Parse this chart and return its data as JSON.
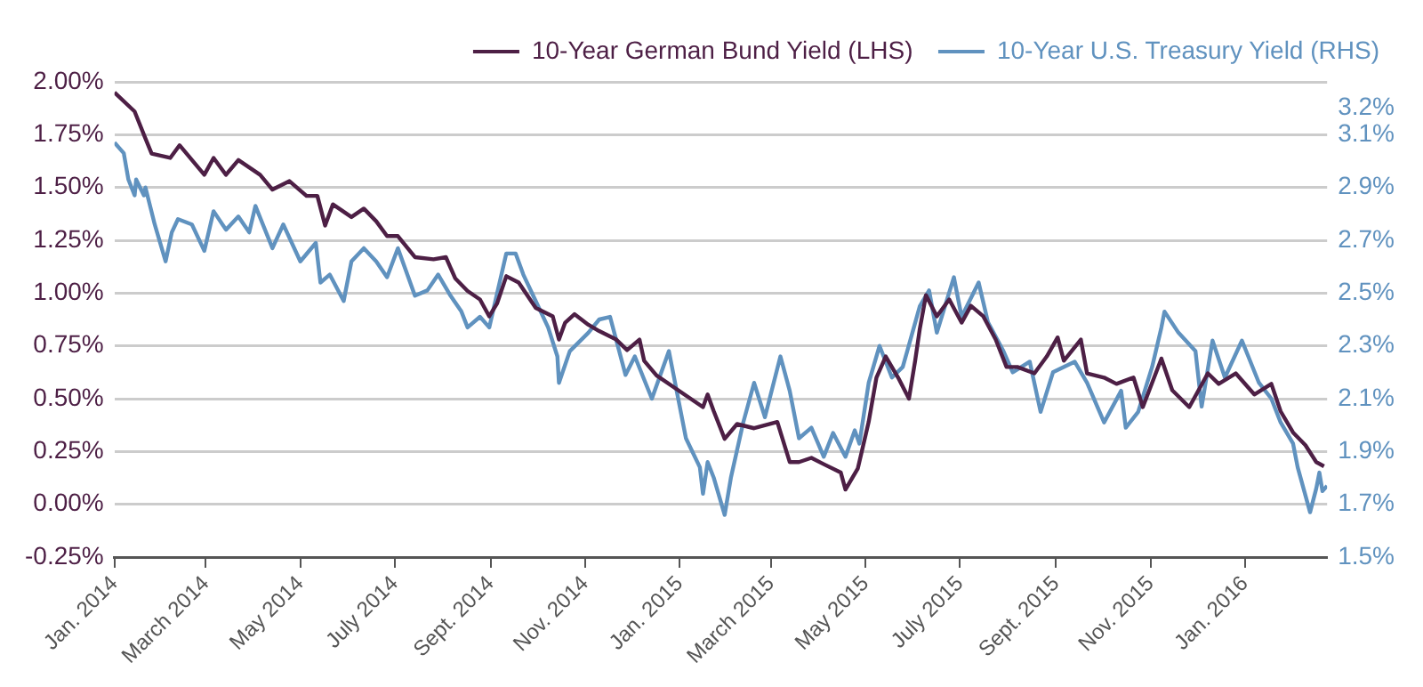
{
  "chart_data": {
    "type": "line",
    "legend": "top right",
    "grid": "y",
    "xlim": [
      "2014-01-01",
      "2016-02-23"
    ],
    "xticks": [
      {
        "value": "2014-01-01",
        "label": "Jan. 2014"
      },
      {
        "value": "2014-03-01",
        "label": "March 2014"
      },
      {
        "value": "2014-05-01",
        "label": "May 2014"
      },
      {
        "value": "2014-07-01",
        "label": "July 2014"
      },
      {
        "value": "2014-09-01",
        "label": "Sept. 2014"
      },
      {
        "value": "2014-11-01",
        "label": "Nov. 2014"
      },
      {
        "value": "2015-01-01",
        "label": "Jan. 2015"
      },
      {
        "value": "2015-03-01",
        "label": "March 2015"
      },
      {
        "value": "2015-05-01",
        "label": "May 2015"
      },
      {
        "value": "2015-07-01",
        "label": "July 2015"
      },
      {
        "value": "2015-09-01",
        "label": "Sept. 2015"
      },
      {
        "value": "2015-11-01",
        "label": "Nov. 2015"
      },
      {
        "value": "2016-01-01",
        "label": "Jan. 2016"
      }
    ],
    "ylim": [
      -0.25,
      2.0
    ],
    "yticks": [
      {
        "value": -0.25,
        "label": "-0.25%"
      },
      {
        "value": 0,
        "label": "0.00%"
      },
      {
        "value": 0.25,
        "label": "0.25%"
      },
      {
        "value": 0.5,
        "label": "0.50%"
      },
      {
        "value": 0.75,
        "label": "0.75%"
      },
      {
        "value": 1.0,
        "label": "1.00%"
      },
      {
        "value": 1.25,
        "label": "1.25%"
      },
      {
        "value": 1.5,
        "label": "1.50%"
      },
      {
        "value": 1.75,
        "label": "1.75%"
      },
      {
        "value": 2.0,
        "label": "2.00%"
      }
    ],
    "y2lim": [
      1.5,
      3.3
    ],
    "y2ticks": [
      {
        "value": 1.5,
        "label": "1.5%"
      },
      {
        "value": 1.7,
        "label": "1.7%"
      },
      {
        "value": 1.9,
        "label": "1.9%"
      },
      {
        "value": 2.1,
        "label": "2.1%"
      },
      {
        "value": 2.3,
        "label": "2.3%"
      },
      {
        "value": 2.5,
        "label": "2.5%"
      },
      {
        "value": 2.7,
        "label": "2.7%"
      },
      {
        "value": 2.9,
        "label": "2.9%"
      },
      {
        "value": 3.1,
        "label": "3.1%"
      },
      {
        "value": 3.2,
        "label": "3.2%"
      }
    ],
    "series": [
      {
        "name": "10-Year German Bund Yield (LHS)",
        "color": "#4d1f45",
        "x": [
          "2014-01-01",
          "2014-01-14",
          "2014-01-20",
          "2014-01-25",
          "2014-02-06",
          "2014-02-12",
          "2014-02-28",
          "2014-03-06",
          "2014-03-14",
          "2014-03-22",
          "2014-04-05",
          "2014-04-13",
          "2014-04-24",
          "2014-05-05",
          "2014-05-12",
          "2014-05-17",
          "2014-05-22",
          "2014-06-03",
          "2014-06-11",
          "2014-06-19",
          "2014-06-26",
          "2014-07-03",
          "2014-07-14",
          "2014-07-26",
          "2014-08-03",
          "2014-08-09",
          "2014-08-17",
          "2014-08-25",
          "2014-08-31",
          "2014-09-05",
          "2014-09-11",
          "2014-09-19",
          "2014-09-30",
          "2014-10-11",
          "2014-10-15",
          "2014-10-19",
          "2014-10-25",
          "2014-11-03",
          "2014-11-10",
          "2014-11-21",
          "2014-11-28",
          "2014-12-06",
          "2014-12-09",
          "2014-12-17",
          "2014-12-31",
          "2015-01-16",
          "2015-01-19",
          "2015-01-23",
          "2015-01-30",
          "2015-02-07",
          "2015-02-18",
          "2015-03-05",
          "2015-03-13",
          "2015-03-19",
          "2015-03-27",
          "2015-04-04",
          "2015-04-15",
          "2015-04-18",
          "2015-04-26",
          "2015-05-03",
          "2015-05-08",
          "2015-05-14",
          "2015-05-22",
          "2015-05-29",
          "2015-06-02",
          "2015-06-05",
          "2015-06-09",
          "2015-06-16",
          "2015-06-24",
          "2015-07-02",
          "2015-07-08",
          "2015-07-16",
          "2015-07-24",
          "2015-07-31",
          "2015-08-07",
          "2015-08-18",
          "2015-08-26",
          "2015-09-02",
          "2015-09-06",
          "2015-09-17",
          "2015-09-21",
          "2015-10-02",
          "2015-10-10",
          "2015-10-21",
          "2015-10-27",
          "2015-11-08",
          "2015-11-15",
          "2015-11-26",
          "2015-12-08",
          "2015-12-15",
          "2015-12-26",
          "2016-01-07",
          "2016-01-18",
          "2016-01-24",
          "2016-02-01",
          "2016-02-09",
          "2016-02-16",
          "2016-02-21"
        ],
        "values": [
          1.95,
          1.86,
          1.75,
          1.66,
          1.64,
          1.7,
          1.56,
          1.64,
          1.56,
          1.63,
          1.56,
          1.49,
          1.53,
          1.46,
          1.46,
          1.32,
          1.42,
          1.36,
          1.4,
          1.34,
          1.27,
          1.27,
          1.17,
          1.16,
          1.17,
          1.07,
          1.01,
          0.97,
          0.89,
          0.95,
          1.08,
          1.05,
          0.93,
          0.89,
          0.78,
          0.86,
          0.9,
          0.85,
          0.82,
          0.78,
          0.73,
          0.78,
          0.68,
          0.61,
          0.54,
          0.46,
          0.52,
          0.44,
          0.31,
          0.38,
          0.36,
          0.39,
          0.2,
          0.2,
          0.22,
          0.19,
          0.15,
          0.07,
          0.17,
          0.39,
          0.6,
          0.7,
          0.6,
          0.5,
          0.68,
          0.83,
          0.99,
          0.89,
          0.97,
          0.86,
          0.94,
          0.89,
          0.78,
          0.65,
          0.65,
          0.62,
          0.7,
          0.79,
          0.68,
          0.78,
          0.62,
          0.6,
          0.57,
          0.6,
          0.46,
          0.69,
          0.54,
          0.46,
          0.62,
          0.57,
          0.62,
          0.52,
          0.57,
          0.44,
          0.34,
          0.28,
          0.2,
          0.18
        ]
      },
      {
        "name": "10-Year U.S. Treasury Yield (RHS)",
        "color": "#6092bf",
        "axis": "y2",
        "x": [
          "2014-01-01",
          "2014-01-07",
          "2014-01-10",
          "2014-01-14",
          "2014-01-15",
          "2014-01-20",
          "2014-01-21",
          "2014-01-27",
          "2014-02-03",
          "2014-02-07",
          "2014-02-11",
          "2014-02-20",
          "2014-02-28",
          "2014-03-06",
          "2014-03-14",
          "2014-03-22",
          "2014-03-29",
          "2014-04-02",
          "2014-04-13",
          "2014-04-20",
          "2014-05-01",
          "2014-05-11",
          "2014-05-14",
          "2014-05-20",
          "2014-05-29",
          "2014-06-03",
          "2014-06-11",
          "2014-06-19",
          "2014-06-26",
          "2014-07-03",
          "2014-07-14",
          "2014-07-22",
          "2014-07-29",
          "2014-08-06",
          "2014-08-13",
          "2014-08-17",
          "2014-08-25",
          "2014-08-31",
          "2014-09-11",
          "2014-09-17",
          "2014-09-22",
          "2014-09-30",
          "2014-10-08",
          "2014-10-14",
          "2014-10-15",
          "2014-10-22",
          "2014-11-03",
          "2014-11-10",
          "2014-11-17",
          "2014-11-27",
          "2014-12-03",
          "2014-12-14",
          "2014-12-25",
          "2015-01-05",
          "2015-01-14",
          "2015-01-16",
          "2015-01-19",
          "2015-01-23",
          "2015-01-30",
          "2015-02-03",
          "2015-02-11",
          "2015-02-18",
          "2015-02-25",
          "2015-03-07",
          "2015-03-13",
          "2015-03-19",
          "2015-03-27",
          "2015-04-04",
          "2015-04-10",
          "2015-04-18",
          "2015-04-24",
          "2015-04-27",
          "2015-05-03",
          "2015-05-10",
          "2015-05-18",
          "2015-05-25",
          "2015-06-05",
          "2015-06-11",
          "2015-06-16",
          "2015-06-27",
          "2015-07-02",
          "2015-07-13",
          "2015-07-19",
          "2015-07-29",
          "2015-08-04",
          "2015-08-15",
          "2015-08-22",
          "2015-08-30",
          "2015-09-13",
          "2015-09-21",
          "2015-10-02",
          "2015-10-13",
          "2015-10-16",
          "2015-10-24",
          "2015-11-02",
          "2015-11-08",
          "2015-11-10",
          "2015-11-19",
          "2015-11-30",
          "2015-12-04",
          "2015-12-11",
          "2015-12-19",
          "2015-12-30",
          "2016-01-10",
          "2016-01-18",
          "2016-01-24",
          "2016-02-01",
          "2016-02-04",
          "2016-02-12",
          "2016-02-16",
          "2016-02-18",
          "2016-02-20",
          "2016-02-23"
        ],
        "values": [
          3.07,
          3.03,
          2.93,
          2.87,
          2.93,
          2.87,
          2.9,
          2.76,
          2.62,
          2.73,
          2.78,
          2.76,
          2.66,
          2.81,
          2.74,
          2.79,
          2.73,
          2.83,
          2.67,
          2.76,
          2.62,
          2.69,
          2.54,
          2.57,
          2.47,
          2.62,
          2.67,
          2.62,
          2.56,
          2.67,
          2.49,
          2.51,
          2.57,
          2.49,
          2.43,
          2.37,
          2.41,
          2.37,
          2.65,
          2.65,
          2.57,
          2.47,
          2.37,
          2.26,
          2.16,
          2.28,
          2.35,
          2.4,
          2.41,
          2.19,
          2.26,
          2.1,
          2.28,
          1.95,
          1.84,
          1.74,
          1.86,
          1.8,
          1.66,
          1.8,
          2.01,
          2.16,
          2.03,
          2.26,
          2.13,
          1.95,
          1.99,
          1.88,
          1.97,
          1.88,
          1.98,
          1.93,
          2.16,
          2.3,
          2.18,
          2.22,
          2.45,
          2.51,
          2.35,
          2.56,
          2.41,
          2.54,
          2.39,
          2.28,
          2.2,
          2.24,
          2.05,
          2.2,
          2.24,
          2.16,
          2.01,
          2.13,
          1.99,
          2.05,
          2.22,
          2.37,
          2.43,
          2.35,
          2.28,
          2.07,
          2.32,
          2.18,
          2.32,
          2.16,
          2.1,
          2.01,
          1.93,
          1.84,
          1.67,
          1.76,
          1.82,
          1.75,
          1.77
        ]
      }
    ]
  }
}
